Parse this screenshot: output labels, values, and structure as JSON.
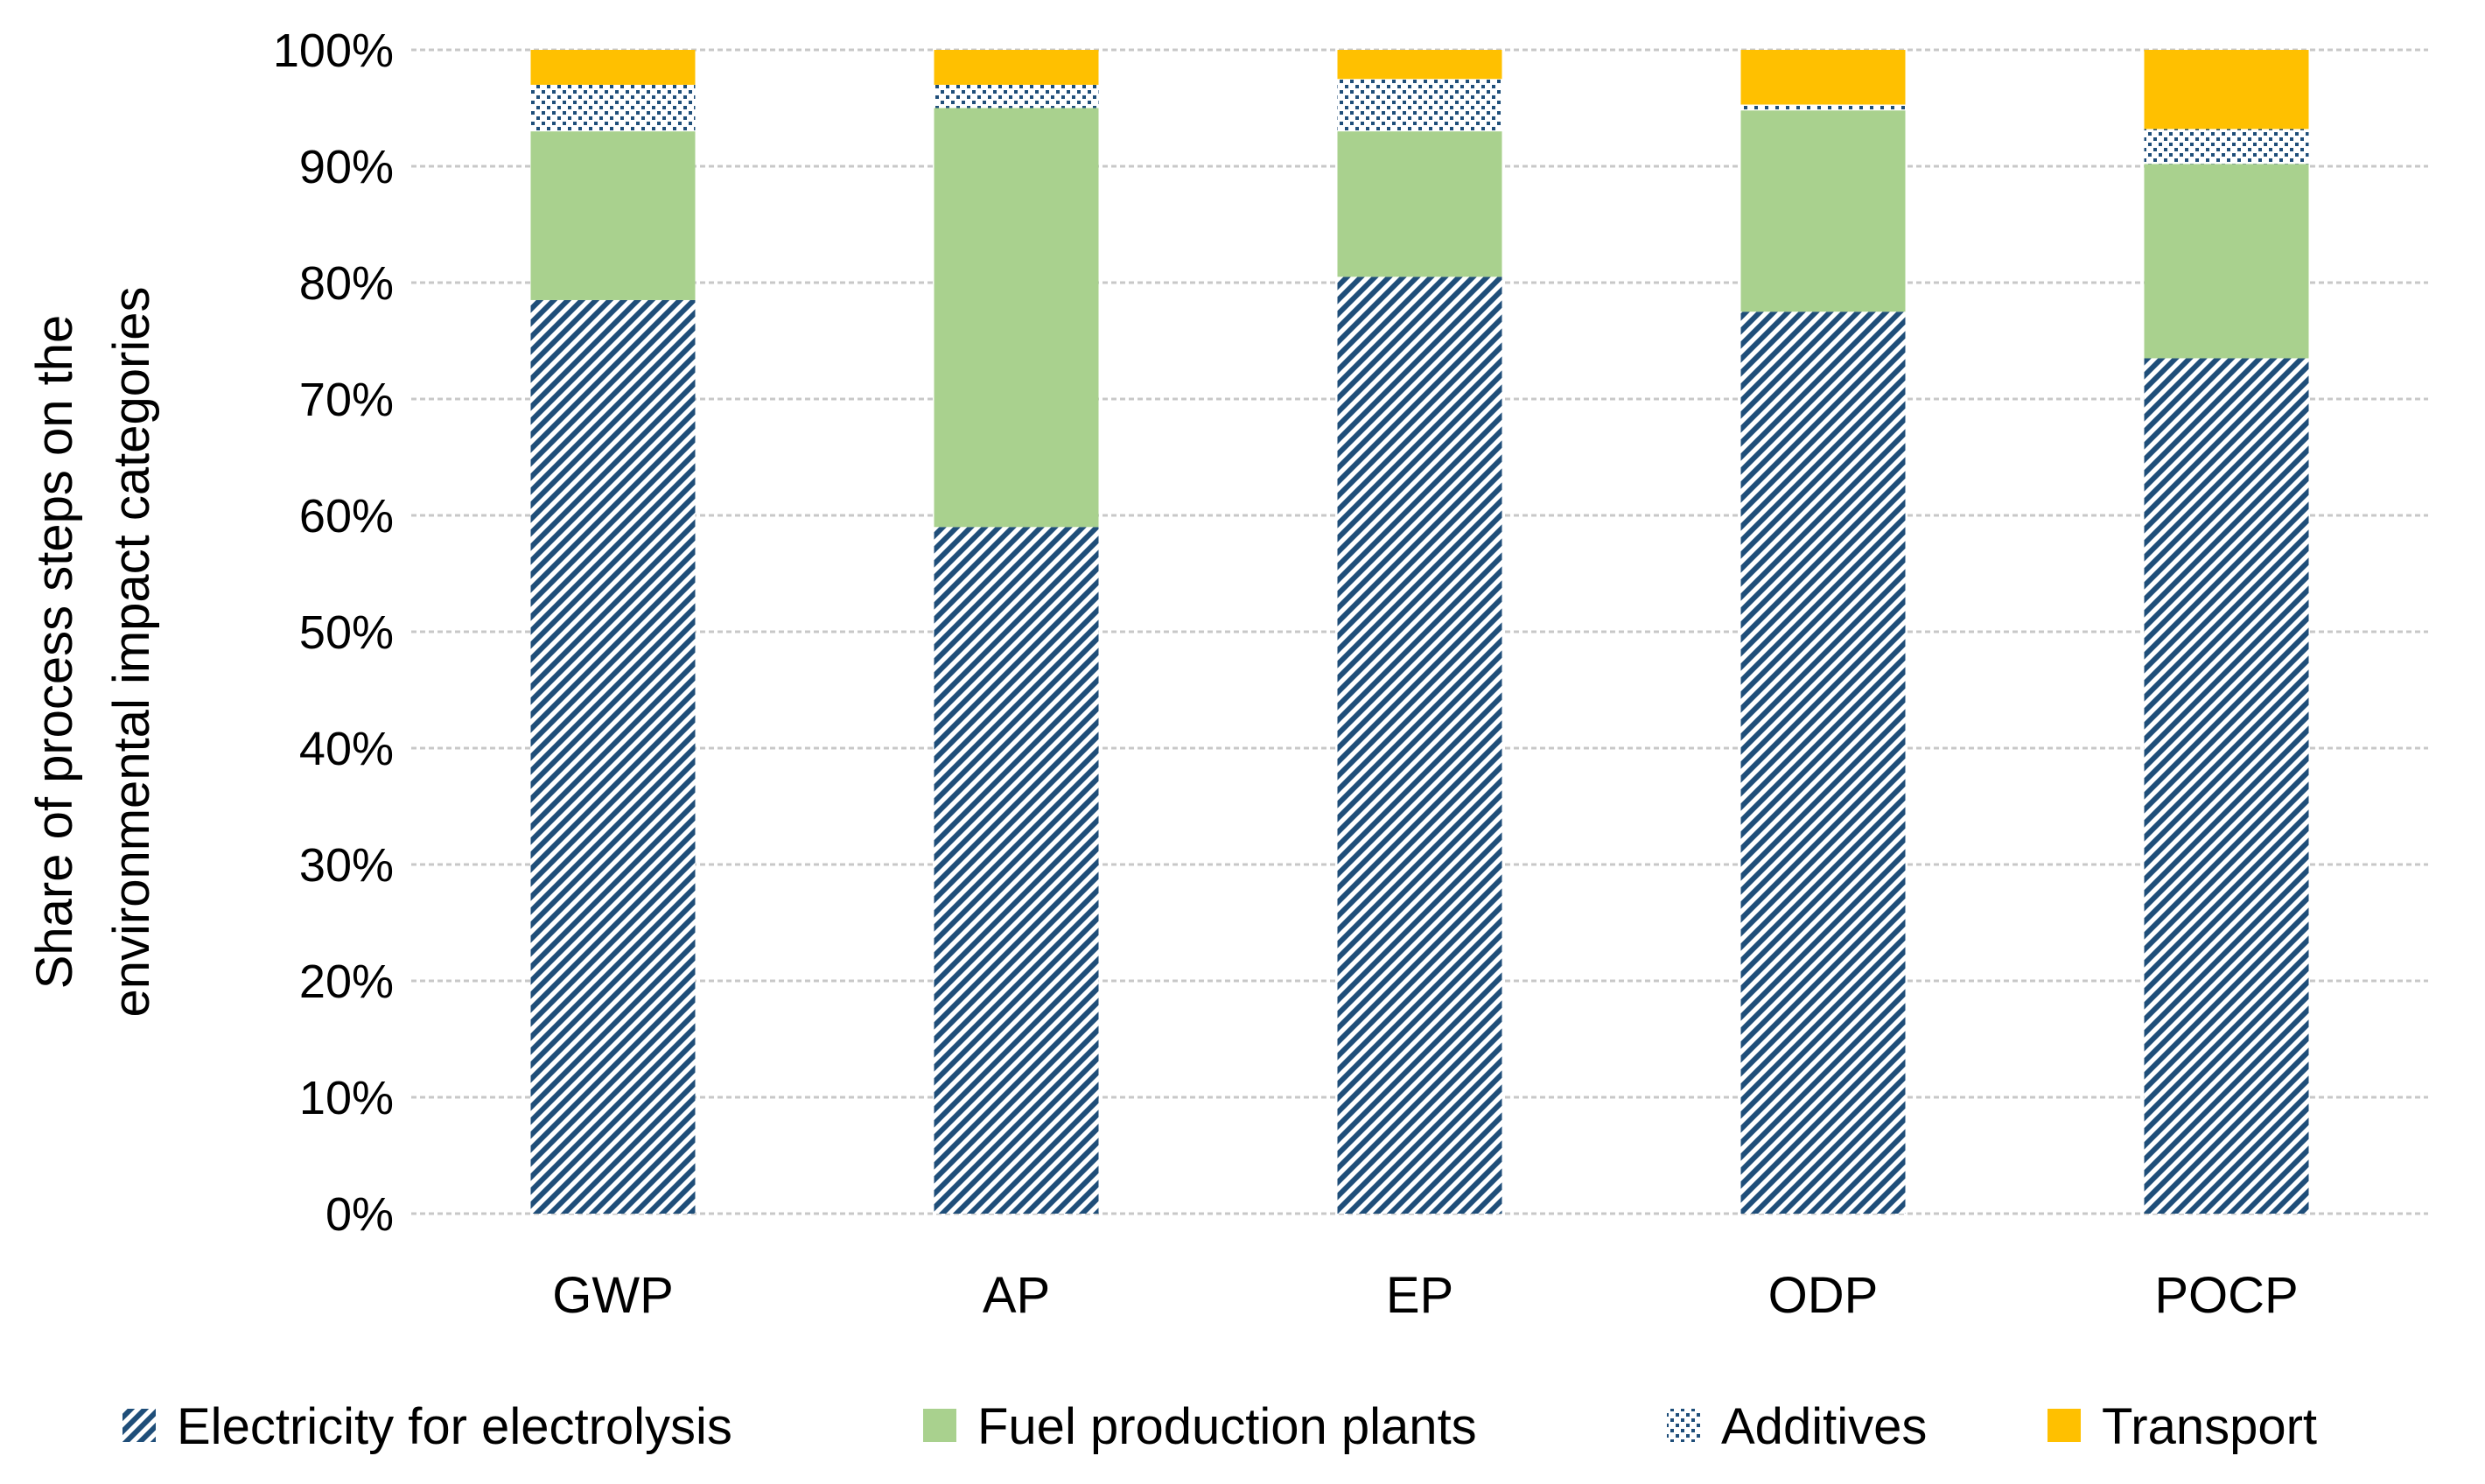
{
  "chart_data": {
    "type": "bar",
    "stacked": true,
    "title": "",
    "xlabel": "",
    "ylabel_lines": [
      "Share of process steps on the",
      "environmental impact categories"
    ],
    "categories": [
      "GWP",
      "AP",
      "EP",
      "ODP",
      "POCP"
    ],
    "ylim": [
      0,
      100
    ],
    "y_ticks": [
      "0%",
      "10%",
      "20%",
      "30%",
      "40%",
      "50%",
      "60%",
      "70%",
      "80%",
      "90%",
      "100%"
    ],
    "grid": true,
    "legend_position": "bottom",
    "series": [
      {
        "name": "Electricity for electrolysis",
        "values": [
          78.5,
          59,
          80.5,
          77.5,
          73.5
        ],
        "color": "#1f4e79",
        "pattern": "diagonal"
      },
      {
        "name": "Fuel production plants",
        "values": [
          14.5,
          36,
          12.5,
          17.3,
          16.7
        ],
        "color": "#a9d18e",
        "pattern": "solid"
      },
      {
        "name": "Additives",
        "values": [
          4,
          2,
          4.5,
          0.5,
          3
        ],
        "color": "#1f4e79",
        "pattern": "dots"
      },
      {
        "name": "Transport",
        "values": [
          3,
          3,
          2.5,
          4.7,
          6.8
        ],
        "color": "#ffc000",
        "pattern": "solid"
      }
    ]
  }
}
